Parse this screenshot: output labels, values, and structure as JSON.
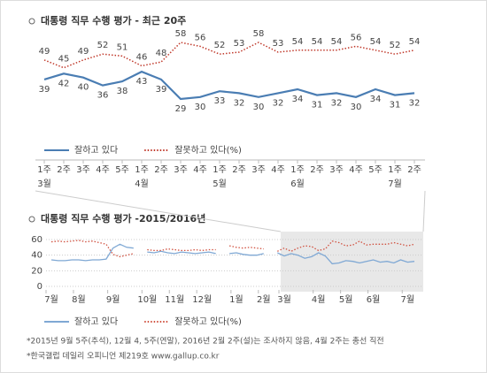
{
  "chart_data": [
    {
      "type": "line",
      "title": "대통령 직무 수행 평가 - 최근 20주",
      "categories": [
        "1주",
        "2주",
        "3주",
        "4주",
        "5주",
        "1주",
        "2주",
        "3주",
        "4주",
        "1주",
        "2주",
        "3주",
        "4주",
        "1주",
        "2주",
        "3주",
        "4주",
        "5주",
        "1주",
        "2주"
      ],
      "month_labels": [
        "3월",
        null,
        null,
        null,
        null,
        "4월",
        null,
        null,
        null,
        "5월",
        null,
        null,
        null,
        "6월",
        null,
        null,
        null,
        null,
        "7월",
        null
      ],
      "series": [
        {
          "name": "잘하고 있다",
          "color": "#4a7db3",
          "style": "solid",
          "values": [
            39,
            42,
            40,
            36,
            38,
            43,
            39,
            29,
            30,
            33,
            32,
            30,
            32,
            34,
            31,
            32,
            30,
            34,
            31,
            32
          ]
        },
        {
          "name": "잘못하고 있다(%)",
          "color": "#c0392b",
          "style": "dotted",
          "values": [
            49,
            45,
            49,
            52,
            51,
            46,
            48,
            58,
            56,
            52,
            53,
            58,
            53,
            54,
            54,
            54,
            56,
            54,
            52,
            54
          ]
        }
      ]
    },
    {
      "type": "line",
      "title": "대통령 직무 수행 평가 -2015/2016년",
      "categories": [
        "7월",
        null,
        null,
        null,
        "8월",
        null,
        null,
        null,
        null,
        "9월",
        null,
        null,
        null,
        null,
        "10월",
        null,
        null,
        null,
        "11월",
        null,
        null,
        null,
        "12월",
        null,
        null,
        null,
        null,
        "1월",
        null,
        null,
        null,
        "2월",
        null,
        null,
        "3월",
        null,
        null,
        null,
        null,
        "4월",
        null,
        null,
        null,
        "5월",
        null,
        null,
        null,
        "6월",
        null,
        null,
        null,
        null,
        "7월",
        null
      ],
      "ylim": [
        0,
        60
      ],
      "yticks": [
        0,
        20,
        40,
        60
      ],
      "grid": true,
      "series": [
        {
          "name": "잘하고 있다",
          "color": "#7fa8d4",
          "style": "solid",
          "values": [
            34,
            33,
            33,
            34,
            34,
            33,
            34,
            34,
            35,
            49,
            54,
            50,
            49,
            null,
            44,
            43,
            45,
            43,
            42,
            44,
            43,
            42,
            43,
            44,
            42,
            null,
            42,
            43,
            41,
            40,
            40,
            42,
            null,
            43,
            39,
            42,
            40,
            36,
            38,
            43,
            39,
            29,
            30,
            33,
            32,
            30,
            32,
            34,
            31,
            32,
            30,
            34,
            31,
            32
          ]
        },
        {
          "name": "잘못하고 있다(%)",
          "color": "#d0503f",
          "style": "dotted",
          "values": [
            57,
            58,
            57,
            58,
            59,
            57,
            58,
            56,
            54,
            41,
            38,
            40,
            42,
            null,
            47,
            46,
            46,
            48,
            47,
            46,
            46,
            47,
            46,
            47,
            47,
            null,
            52,
            50,
            49,
            50,
            49,
            48,
            null,
            45,
            49,
            45,
            49,
            52,
            51,
            46,
            48,
            58,
            56,
            52,
            53,
            58,
            53,
            54,
            54,
            54,
            56,
            54,
            52,
            54
          ]
        }
      ]
    }
  ],
  "footnotes": [
    "*2015년 9월 5주(추석), 12월 4, 5주(연말), 2016년 2월 2주(설)는 조사하지 않음, 4월 2주는 총선 직전",
    "*한국갤럽 데일리 오피니언 제219호 www.gallup.co.kr"
  ]
}
